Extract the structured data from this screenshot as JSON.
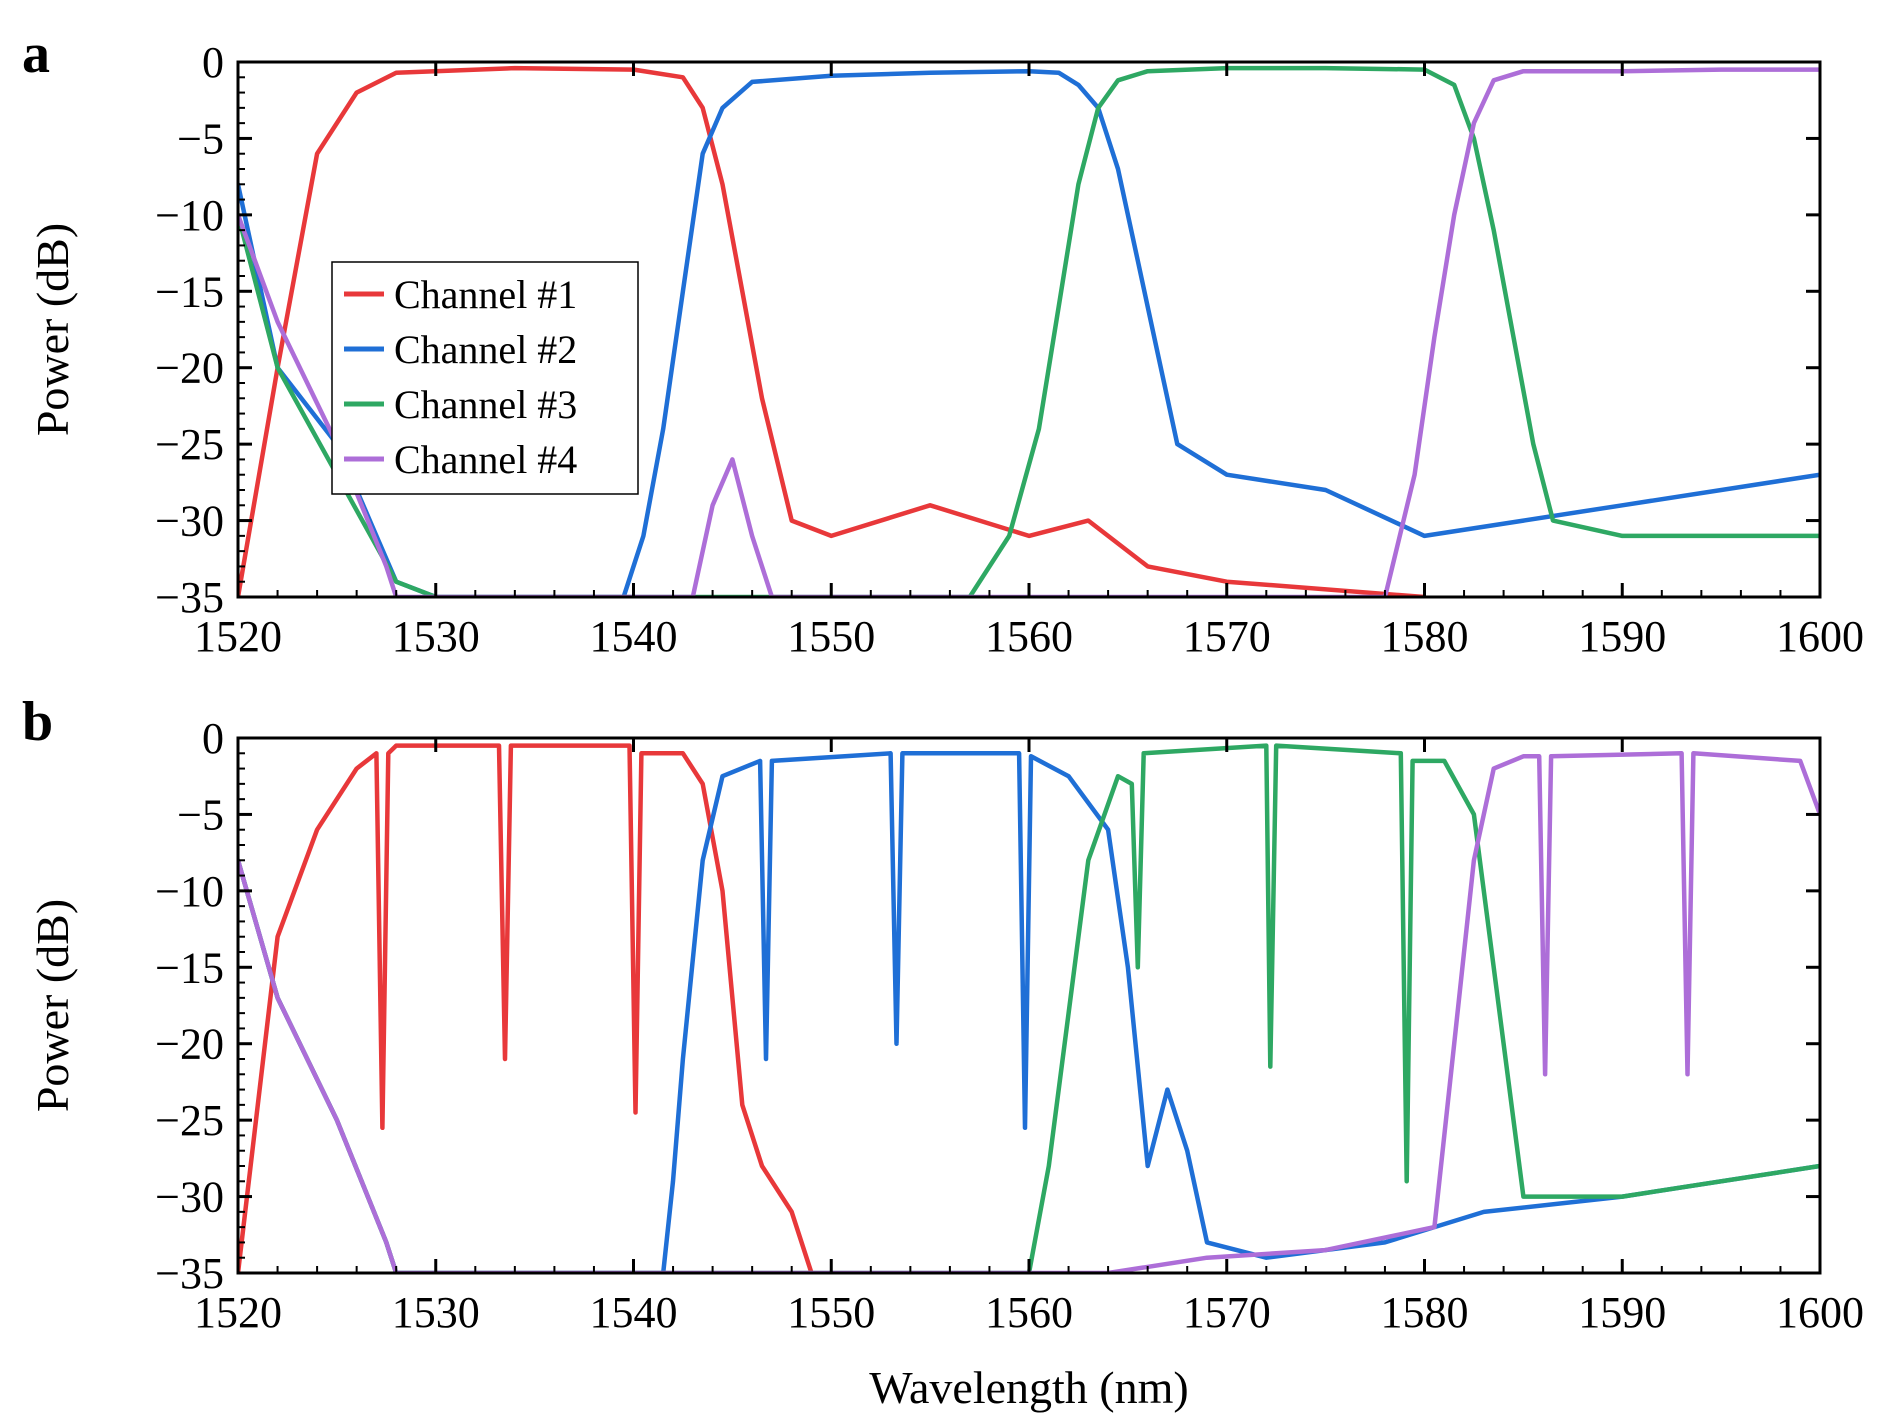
{
  "colors": {
    "channel_1": "#e8383a",
    "channel_2": "#1f6fd6",
    "channel_3": "#2ea863",
    "channel_4": "#ad6ed8"
  },
  "chart_data": [
    {
      "panel": "a",
      "type": "line",
      "xlabel": "",
      "ylabel": "Power (dB)",
      "xlim": [
        1520,
        1600
      ],
      "ylim": [
        -35,
        0
      ],
      "xticks": [
        "1520",
        "1530",
        "1540",
        "1550",
        "1560",
        "1570",
        "1580",
        "1590",
        "1600"
      ],
      "yticks": [
        "0",
        "−5",
        "−10",
        "−15",
        "−20",
        "−25",
        "−30",
        "−35"
      ],
      "grid": false,
      "legend": {
        "position": "left",
        "entries": [
          "Channel #1",
          "Channel #2",
          "Channel #3",
          "Channel #4"
        ]
      },
      "series": [
        {
          "name": "Channel #1",
          "color": "#e8383a",
          "x": [
            1520,
            1522,
            1524,
            1526,
            1528,
            1534,
            1540,
            1542.5,
            1543.5,
            1544.5,
            1545.5,
            1546.5,
            1548,
            1550,
            1555,
            1560,
            1563,
            1566,
            1570,
            1580
          ],
          "y": [
            -35,
            -20,
            -6,
            -2,
            -0.7,
            -0.4,
            -0.5,
            -1,
            -3,
            -8,
            -15,
            -22,
            -30,
            -31,
            -29,
            -31,
            -30,
            -33,
            -34,
            -35
          ]
        },
        {
          "name": "Channel #2",
          "color": "#1f6fd6",
          "x": [
            1520,
            1522,
            1525,
            1528,
            1530,
            1539.5,
            1540.5,
            1541.5,
            1542.5,
            1543.5,
            1544.5,
            1546,
            1550,
            1555,
            1560,
            1561.5,
            1562.5,
            1563.5,
            1564.5,
            1565.5,
            1566.5,
            1567.5,
            1570,
            1575,
            1580,
            1585,
            1590,
            1600
          ],
          "y": [
            -8,
            -20,
            -25,
            -34,
            -35,
            -35,
            -31,
            -24,
            -15,
            -6,
            -3,
            -1.3,
            -0.9,
            -0.7,
            -0.6,
            -0.7,
            -1.5,
            -3,
            -7,
            -13,
            -19,
            -25,
            -27,
            -28,
            -31,
            -30,
            -29,
            -27
          ]
        },
        {
          "name": "Channel #3",
          "color": "#2ea863",
          "x": [
            1520,
            1522,
            1525,
            1528,
            1530,
            1557,
            1559,
            1560.5,
            1561.5,
            1562.5,
            1563.5,
            1564.5,
            1566,
            1570,
            1575,
            1580,
            1581.5,
            1582.5,
            1583.5,
            1584.5,
            1585.5,
            1586.5,
            1590,
            1600
          ],
          "y": [
            -10,
            -20,
            -27,
            -34,
            -35,
            -35,
            -31,
            -24,
            -16,
            -8,
            -3,
            -1.2,
            -0.6,
            -0.4,
            -0.4,
            -0.5,
            -1.5,
            -5,
            -11,
            -18,
            -25,
            -30,
            -31,
            -31
          ]
        },
        {
          "name": "Channel #4",
          "color": "#ad6ed8",
          "x": [
            1520,
            1522,
            1525,
            1527.5,
            1528,
            1543,
            1544,
            1545,
            1546,
            1547,
            1578,
            1579.5,
            1580.5,
            1581.5,
            1582.5,
            1583.5,
            1585,
            1590,
            1595,
            1600
          ],
          "y": [
            -10,
            -17,
            -25,
            -33,
            -35,
            -35,
            -29,
            -26,
            -31,
            -35,
            -35,
            -27,
            -18,
            -10,
            -4,
            -1.2,
            -0.6,
            -0.6,
            -0.5,
            -0.5
          ]
        }
      ]
    },
    {
      "panel": "b",
      "type": "line",
      "xlabel": "Wavelength (nm)",
      "ylabel": "Power (dB)",
      "xlim": [
        1520,
        1600
      ],
      "ylim": [
        -35,
        0
      ],
      "xticks": [
        "1520",
        "1530",
        "1540",
        "1550",
        "1560",
        "1570",
        "1580",
        "1590",
        "1600"
      ],
      "yticks": [
        "0",
        "−5",
        "−10",
        "−15",
        "−20",
        "−25",
        "−30",
        "−35"
      ],
      "grid": false,
      "series": [
        {
          "name": "Channel #1",
          "color": "#e8383a",
          "x": [
            1520,
            1522,
            1524,
            1526,
            1527,
            1527.3,
            1527.6,
            1528,
            1533.2,
            1533.5,
            1533.8,
            1539.8,
            1540.1,
            1540.4,
            1542.5,
            1543.5,
            1544.5,
            1545.5,
            1546.5,
            1548,
            1549
          ],
          "y": [
            -35,
            -13,
            -6,
            -2,
            -1,
            -25.5,
            -1,
            -0.5,
            -0.5,
            -21,
            -0.5,
            -0.5,
            -24.5,
            -1,
            -1,
            -3,
            -10,
            -24,
            -28,
            -31,
            -35
          ]
        },
        {
          "name": "Channel #2",
          "color": "#1f6fd6",
          "x": [
            1520,
            1522,
            1525,
            1527.5,
            1528,
            1541.5,
            1542,
            1542.5,
            1543.5,
            1544.5,
            1546.4,
            1546.7,
            1547,
            1553,
            1553.3,
            1553.6,
            1559.5,
            1559.8,
            1560.1,
            1562,
            1564,
            1565,
            1566,
            1567,
            1568,
            1569,
            1572,
            1578,
            1583,
            1590,
            1600
          ],
          "y": [
            -8,
            -17,
            -25,
            -33,
            -35,
            -35,
            -29,
            -21,
            -8,
            -2.5,
            -1.5,
            -21,
            -1.5,
            -1,
            -20,
            -1,
            -1,
            -25.5,
            -1.2,
            -2.5,
            -6,
            -15,
            -28,
            -23,
            -27,
            -33,
            -34,
            -33,
            -31,
            -30,
            -28
          ]
        },
        {
          "name": "Channel #3",
          "color": "#2ea863",
          "x": [
            1520,
            1522,
            1525,
            1527.5,
            1528,
            1560,
            1561,
            1562,
            1563,
            1564.5,
            1565.2,
            1565.5,
            1565.8,
            1572,
            1572.2,
            1572.5,
            1578.8,
            1579.1,
            1579.4,
            1581,
            1582.5,
            1584,
            1585,
            1590,
            1600
          ],
          "y": [
            -8,
            -17,
            -25,
            -33,
            -35,
            -35,
            -28,
            -18,
            -8,
            -2.5,
            -3,
            -15,
            -1,
            -0.5,
            -21.5,
            -0.5,
            -1,
            -29,
            -1.5,
            -1.5,
            -5,
            -20,
            -30,
            -30,
            -28
          ]
        },
        {
          "name": "Channel #4",
          "color": "#ad6ed8",
          "x": [
            1520,
            1522,
            1525,
            1527.5,
            1528,
            1564,
            1569,
            1575,
            1580.5,
            1581.5,
            1582.5,
            1583.5,
            1585,
            1585.8,
            1586.1,
            1586.4,
            1593,
            1593.3,
            1593.6,
            1599,
            1600
          ],
          "y": [
            -8,
            -17,
            -25,
            -33,
            -35,
            -35,
            -34,
            -33.5,
            -32,
            -20,
            -8,
            -2,
            -1.2,
            -1.2,
            -22,
            -1.2,
            -1,
            -22,
            -1,
            -1.5,
            -5
          ]
        }
      ]
    }
  ]
}
